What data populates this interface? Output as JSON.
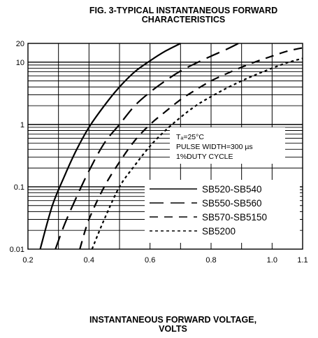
{
  "figure": {
    "title_line1": "FIG. 3-TYPICAL INSTANTANEOUS FORWARD",
    "title_line2": "CHARACTERISTICS",
    "xlabel_line1": "INSTANTANEOUS FORWARD VOLTAGE,",
    "xlabel_line2": "VOLTS"
  },
  "annotation": {
    "line1": "Tₐ=25°C",
    "line2": "PULSE WIDTH=300 µs",
    "line3": "1%DUTY CYCLE"
  },
  "chart_data": {
    "type": "line",
    "title": "FIG. 3-TYPICAL INSTANTANEOUS FORWARD CHARACTERISTICS",
    "xlabel": "INSTANTANEOUS FORWARD VOLTAGE, VOLTS",
    "ylabel": "",
    "xlim": [
      0.2,
      1.1
    ],
    "ylim": [
      0.01,
      20
    ],
    "yscale": "log",
    "grid": true,
    "legend_position": "bottom-right",
    "x_ticks": [
      "0.2",
      "0.4",
      "0.6",
      "0.8",
      "1.0",
      "1.1"
    ],
    "y_ticks": [
      "20",
      "10",
      "1",
      "0.1",
      "0.01"
    ],
    "series": [
      {
        "name": "SB520-SB540",
        "dash": "solid",
        "x": [
          0.24,
          0.28,
          0.32,
          0.36,
          0.4,
          0.45,
          0.5,
          0.55,
          0.6,
          0.65,
          0.7
        ],
        "y": [
          0.01,
          0.05,
          0.15,
          0.4,
          0.9,
          2.0,
          4.0,
          7.0,
          10.5,
          15.0,
          20.0
        ]
      },
      {
        "name": "SB550-SB560",
        "dash": "long",
        "x": [
          0.29,
          0.32,
          0.36,
          0.4,
          0.45,
          0.5,
          0.55,
          0.6,
          0.65,
          0.7,
          0.75,
          0.8,
          0.85,
          0.89
        ],
        "y": [
          0.01,
          0.025,
          0.07,
          0.18,
          0.5,
          1.0,
          2.0,
          3.3,
          5.0,
          7.2,
          9.6,
          12.5,
          16.0,
          20.0
        ]
      },
      {
        "name": "SB570-SB5150",
        "dash": "medium",
        "x": [
          0.37,
          0.4,
          0.45,
          0.5,
          0.55,
          0.6,
          0.65,
          0.7,
          0.75,
          0.8,
          0.85,
          0.9,
          0.95,
          1.0,
          1.05,
          1.1
        ],
        "y": [
          0.01,
          0.03,
          0.1,
          0.25,
          0.55,
          1.0,
          1.6,
          2.5,
          3.6,
          5.0,
          6.5,
          8.3,
          10.3,
          12.5,
          15.0,
          17.0
        ]
      },
      {
        "name": "SB5200",
        "dash": "short",
        "x": [
          0.41,
          0.45,
          0.5,
          0.55,
          0.6,
          0.65,
          0.7,
          0.75,
          0.8,
          0.85,
          0.9,
          0.95,
          1.0,
          1.05,
          1.1
        ],
        "y": [
          0.01,
          0.03,
          0.1,
          0.22,
          0.45,
          0.8,
          1.3,
          2.0,
          2.8,
          3.8,
          5.0,
          6.4,
          8.0,
          9.8,
          11.5
        ]
      }
    ]
  }
}
